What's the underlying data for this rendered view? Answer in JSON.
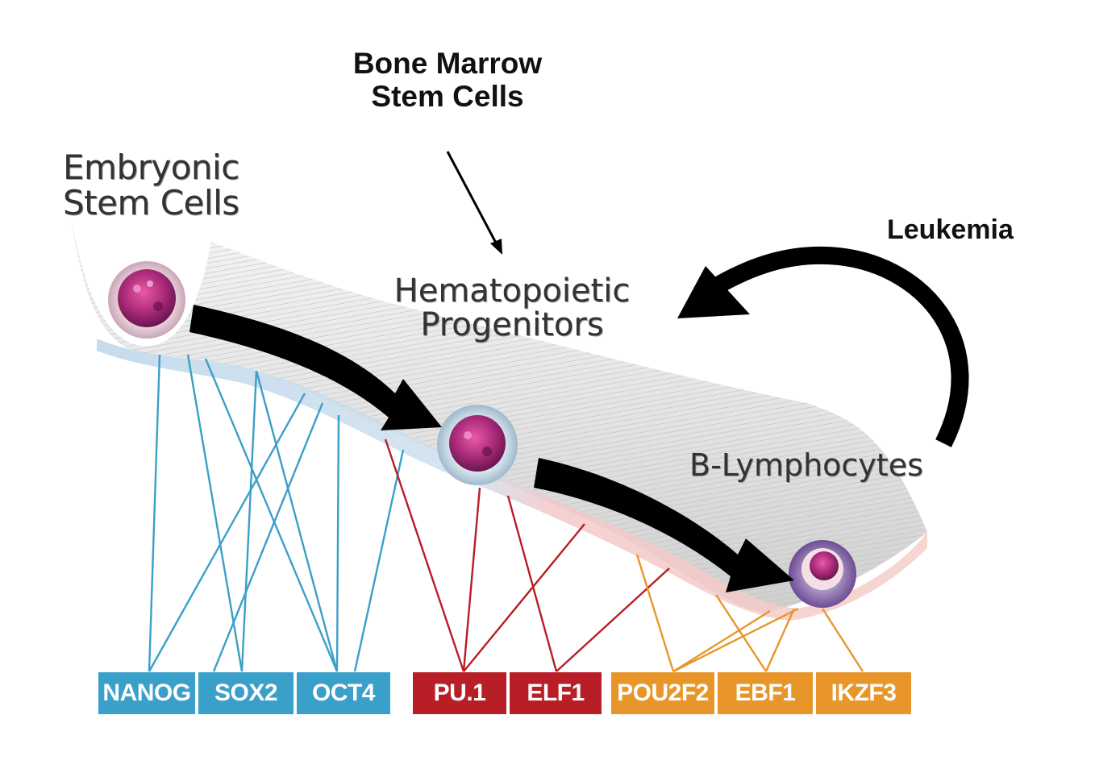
{
  "labels": {
    "bone_marrow": [
      "Bone Marrow",
      "Stem Cells"
    ],
    "leukemia": "Leukemia",
    "embryonic": [
      "Embryonic",
      "Stem Cells"
    ],
    "hematopoietic": [
      "Hematopoietic",
      "Progenitors"
    ],
    "b_lymphocytes": "B-Lymphocytes"
  },
  "genes": [
    {
      "name": "NANOG",
      "group": "embryonic"
    },
    {
      "name": "SOX2",
      "group": "embryonic"
    },
    {
      "name": "OCT4",
      "group": "embryonic"
    },
    {
      "name": "PU.1",
      "group": "hematopoietic"
    },
    {
      "name": "ELF1",
      "group": "hematopoietic"
    },
    {
      "name": "POU2F2",
      "group": "b-lymphocyte"
    },
    {
      "name": "EBF1",
      "group": "b-lymphocyte"
    },
    {
      "name": "IKZF3",
      "group": "b-lymphocyte"
    }
  ],
  "colors": {
    "embryonic": "#3a9fc9",
    "hematopoietic": "#b81e25",
    "b-lymphocyte": "#e8962a",
    "arrow": "#000000"
  }
}
